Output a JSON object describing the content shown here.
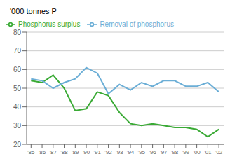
{
  "chart_data": {
    "type": "line",
    "ylabel": "'000 tonnes P",
    "x": [
      1985,
      1986,
      1987,
      1988,
      1989,
      1990,
      1991,
      1992,
      1993,
      1994,
      1995,
      1996,
      1997,
      1998,
      1999,
      2000,
      2001,
      2002
    ],
    "series": [
      {
        "name": "Phosphorus surplus",
        "color": "#3aaa35",
        "values": [
          54,
          53,
          57,
          50,
          38,
          39,
          48,
          46,
          37,
          31,
          30,
          31,
          30,
          29,
          29,
          28,
          24,
          28
        ]
      },
      {
        "name": "Removal of phosphorus",
        "color": "#6baed6",
        "values": [
          55,
          54,
          50,
          53,
          55,
          61,
          58,
          47,
          52,
          49,
          53,
          51,
          54,
          54,
          51,
          51,
          53,
          48
        ]
      }
    ],
    "xlim": [
      1984.6,
      2002.5
    ],
    "xticks": [
      {
        "value": 1985,
        "label": "'85"
      },
      {
        "value": 1986,
        "label": "'86"
      },
      {
        "value": 1987,
        "label": "'87"
      },
      {
        "value": 1988,
        "label": "'88"
      },
      {
        "value": 1989,
        "label": "'89"
      },
      {
        "value": 1990,
        "label": "'90"
      },
      {
        "value": 1991,
        "label": "'91"
      },
      {
        "value": 1992,
        "label": "'92"
      },
      {
        "value": 1993,
        "label": "'93"
      },
      {
        "value": 1994,
        "label": "'94"
      },
      {
        "value": 1995,
        "label": "'95"
      },
      {
        "value": 1996,
        "label": "'96"
      },
      {
        "value": 1997,
        "label": "'97"
      },
      {
        "value": 1998,
        "label": "'98"
      },
      {
        "value": 1999,
        "label": "'99"
      },
      {
        "value": 2000,
        "label": "'00"
      },
      {
        "value": 2001,
        "label": "'01"
      },
      {
        "value": 2002,
        "label": "'02"
      }
    ],
    "ylim": [
      20,
      80
    ],
    "yticks": [
      20,
      30,
      40,
      50,
      60,
      70,
      80
    ],
    "grid": true,
    "legend": "upper left"
  }
}
